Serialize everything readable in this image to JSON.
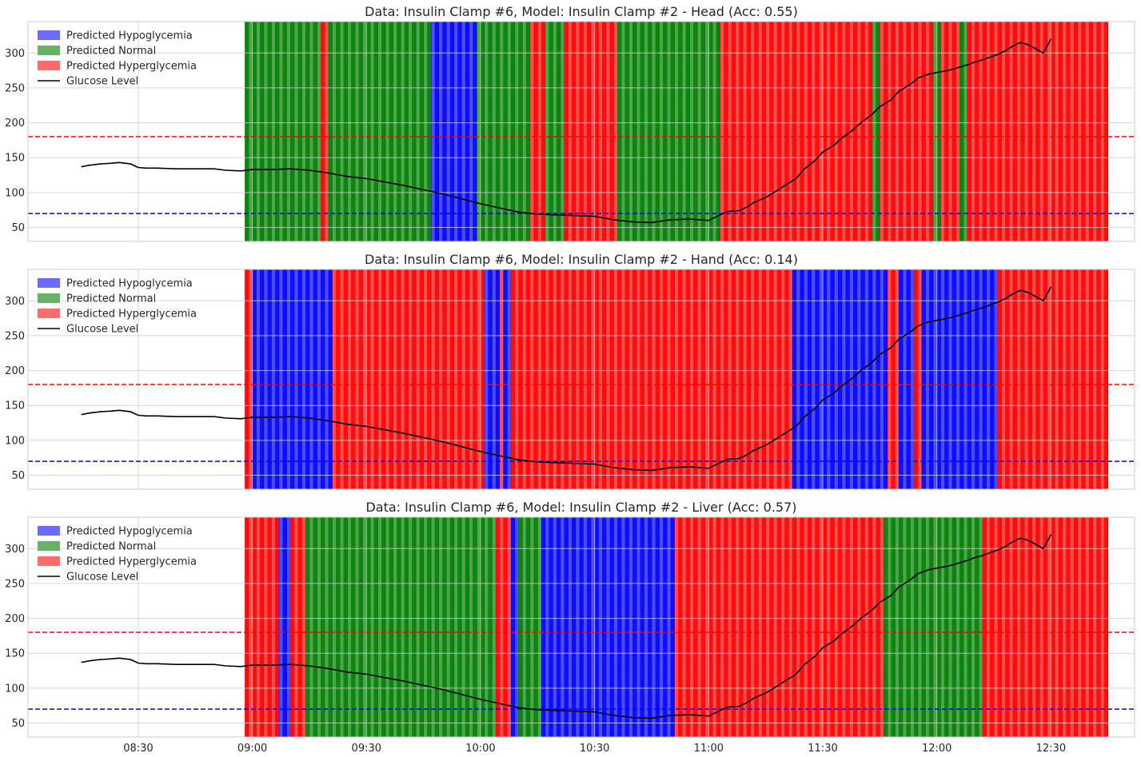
{
  "chart_data": [
    {
      "type": "line",
      "title": "Data: Insulin Clamp #6, Model: Insulin Clamp #2 - Head (Acc: 0.55)",
      "xlabel": "",
      "ylabel": "",
      "ylim": [
        30,
        345
      ],
      "yticks": [
        50,
        100,
        150,
        200,
        250,
        300
      ],
      "xlim": [
        "08:01",
        "12:52"
      ],
      "xticks": [
        "08:30",
        "09:00",
        "09:30",
        "10:00",
        "10:30",
        "11:00",
        "11:30",
        "12:00",
        "12:30"
      ],
      "grid": true,
      "legend_position": "top-left",
      "legend": [
        "Predicted Hypoglycemia",
        "Predicted Normal",
        "Predicted Hyperglycemia",
        "Glucose Level"
      ],
      "thresholds": [
        {
          "value": 180,
          "color": "#ff0000",
          "style": "dashed"
        },
        {
          "value": 70,
          "color": "#0000ff",
          "style": "dashed"
        }
      ],
      "predictions": [
        {
          "start": "08:58",
          "end": "09:18",
          "class": "normal"
        },
        {
          "start": "09:18",
          "end": "09:20",
          "class": "hyper"
        },
        {
          "start": "09:20",
          "end": "09:47",
          "class": "normal"
        },
        {
          "start": "09:47",
          "end": "09:59",
          "class": "hypo"
        },
        {
          "start": "09:59",
          "end": "10:13",
          "class": "normal"
        },
        {
          "start": "10:13",
          "end": "10:17",
          "class": "hyper"
        },
        {
          "start": "10:17",
          "end": "10:22",
          "class": "normal"
        },
        {
          "start": "10:22",
          "end": "10:36",
          "class": "hyper"
        },
        {
          "start": "10:36",
          "end": "11:03",
          "class": "normal"
        },
        {
          "start": "11:03",
          "end": "11:43",
          "class": "hyper"
        },
        {
          "start": "11:43",
          "end": "11:45",
          "class": "normal"
        },
        {
          "start": "11:45",
          "end": "11:59",
          "class": "hyper"
        },
        {
          "start": "11:59",
          "end": "12:01",
          "class": "normal"
        },
        {
          "start": "12:01",
          "end": "12:06",
          "class": "hyper"
        },
        {
          "start": "12:06",
          "end": "12:08",
          "class": "normal"
        },
        {
          "start": "12:08",
          "end": "12:45",
          "class": "hyper"
        }
      ]
    },
    {
      "type": "line",
      "title": "Data: Insulin Clamp #6, Model: Insulin Clamp #2 - Hand (Acc: 0.14)",
      "xlabel": "",
      "ylabel": "",
      "ylim": [
        30,
        345
      ],
      "yticks": [
        50,
        100,
        150,
        200,
        250,
        300
      ],
      "xlim": [
        "08:01",
        "12:52"
      ],
      "xticks": [
        "08:30",
        "09:00",
        "09:30",
        "10:00",
        "10:30",
        "11:00",
        "11:30",
        "12:00",
        "12:30"
      ],
      "grid": true,
      "legend_position": "top-left",
      "legend": [
        "Predicted Hypoglycemia",
        "Predicted Normal",
        "Predicted Hyperglycemia",
        "Glucose Level"
      ],
      "thresholds": [
        {
          "value": 180,
          "color": "#ff0000",
          "style": "dashed"
        },
        {
          "value": 70,
          "color": "#0000ff",
          "style": "dashed"
        }
      ],
      "predictions": [
        {
          "start": "08:58",
          "end": "09:00",
          "class": "hyper"
        },
        {
          "start": "09:00",
          "end": "09:21",
          "class": "hypo"
        },
        {
          "start": "09:21",
          "end": "10:01",
          "class": "hyper"
        },
        {
          "start": "10:01",
          "end": "10:05",
          "class": "hypo"
        },
        {
          "start": "10:05",
          "end": "10:06",
          "class": "hyper"
        },
        {
          "start": "10:06",
          "end": "10:08",
          "class": "hypo"
        },
        {
          "start": "10:08",
          "end": "11:22",
          "class": "hyper"
        },
        {
          "start": "11:22",
          "end": "11:47",
          "class": "hypo"
        },
        {
          "start": "11:47",
          "end": "11:50",
          "class": "hyper"
        },
        {
          "start": "11:50",
          "end": "11:54",
          "class": "hypo"
        },
        {
          "start": "11:54",
          "end": "11:56",
          "class": "hyper"
        },
        {
          "start": "11:56",
          "end": "12:16",
          "class": "hypo"
        },
        {
          "start": "12:16",
          "end": "12:45",
          "class": "hyper"
        }
      ]
    },
    {
      "type": "line",
      "title": "Data: Insulin Clamp #6, Model: Insulin Clamp #2 - Liver (Acc: 0.57)",
      "xlabel": "",
      "ylabel": "",
      "ylim": [
        30,
        345
      ],
      "yticks": [
        50,
        100,
        150,
        200,
        250,
        300
      ],
      "xlim": [
        "08:01",
        "12:52"
      ],
      "xticks": [
        "08:30",
        "09:00",
        "09:30",
        "10:00",
        "10:30",
        "11:00",
        "11:30",
        "12:00",
        "12:30"
      ],
      "grid": true,
      "legend_position": "top-left",
      "legend": [
        "Predicted Hypoglycemia",
        "Predicted Normal",
        "Predicted Hyperglycemia",
        "Glucose Level"
      ],
      "thresholds": [
        {
          "value": 180,
          "color": "#ff0000",
          "style": "dashed"
        },
        {
          "value": 70,
          "color": "#0000ff",
          "style": "dashed"
        }
      ],
      "predictions": [
        {
          "start": "08:58",
          "end": "09:07",
          "class": "hyper"
        },
        {
          "start": "09:07",
          "end": "09:10",
          "class": "hypo"
        },
        {
          "start": "09:10",
          "end": "09:14",
          "class": "hyper"
        },
        {
          "start": "09:14",
          "end": "10:04",
          "class": "normal"
        },
        {
          "start": "10:04",
          "end": "10:08",
          "class": "hyper"
        },
        {
          "start": "10:08",
          "end": "10:10",
          "class": "hypo"
        },
        {
          "start": "10:10",
          "end": "10:16",
          "class": "normal"
        },
        {
          "start": "10:16",
          "end": "10:51",
          "class": "hypo"
        },
        {
          "start": "10:51",
          "end": "11:46",
          "class": "hyper"
        },
        {
          "start": "11:46",
          "end": "12:12",
          "class": "normal"
        },
        {
          "start": "12:12",
          "end": "12:45",
          "class": "hyper"
        }
      ]
    }
  ],
  "glucose": {
    "x": [
      "08:15",
      "08:17",
      "08:20",
      "08:23",
      "08:25",
      "08:28",
      "08:30",
      "08:32",
      "08:35",
      "08:40",
      "08:45",
      "08:50",
      "08:53",
      "08:57",
      "09:00",
      "09:05",
      "09:10",
      "09:15",
      "09:20",
      "09:25",
      "09:30",
      "09:35",
      "09:40",
      "09:45",
      "09:50",
      "09:55",
      "10:00",
      "10:05",
      "10:10",
      "10:15",
      "10:20",
      "10:25",
      "10:30",
      "10:35",
      "10:40",
      "10:45",
      "10:50",
      "10:55",
      "11:00",
      "11:03",
      "11:05",
      "11:08",
      "11:10",
      "11:12",
      "11:15",
      "11:18",
      "11:20",
      "11:23",
      "11:25",
      "11:28",
      "11:30",
      "11:33",
      "11:35",
      "11:38",
      "11:40",
      "11:43",
      "11:45",
      "11:48",
      "11:50",
      "11:53",
      "11:55",
      "11:58",
      "12:00",
      "12:03",
      "12:05",
      "12:08",
      "12:10",
      "12:12",
      "12:14",
      "12:16",
      "12:18",
      "12:20",
      "12:22",
      "12:24",
      "12:26",
      "12:28",
      "12:30"
    ],
    "y": [
      137,
      139,
      141,
      142,
      143,
      141,
      136,
      135,
      135,
      134,
      134,
      134,
      132,
      131,
      133,
      133,
      134,
      132,
      128,
      123,
      120,
      115,
      110,
      104,
      98,
      91,
      84,
      78,
      72,
      69,
      68,
      67,
      66,
      61,
      58,
      57,
      61,
      62,
      60,
      68,
      73,
      74,
      79,
      86,
      93,
      103,
      110,
      120,
      133,
      146,
      158,
      168,
      178,
      190,
      200,
      212,
      223,
      233,
      245,
      255,
      264,
      270,
      272,
      275,
      278,
      283,
      287,
      290,
      294,
      298,
      303,
      310,
      315,
      312,
      306,
      300,
      320
    ]
  }
}
